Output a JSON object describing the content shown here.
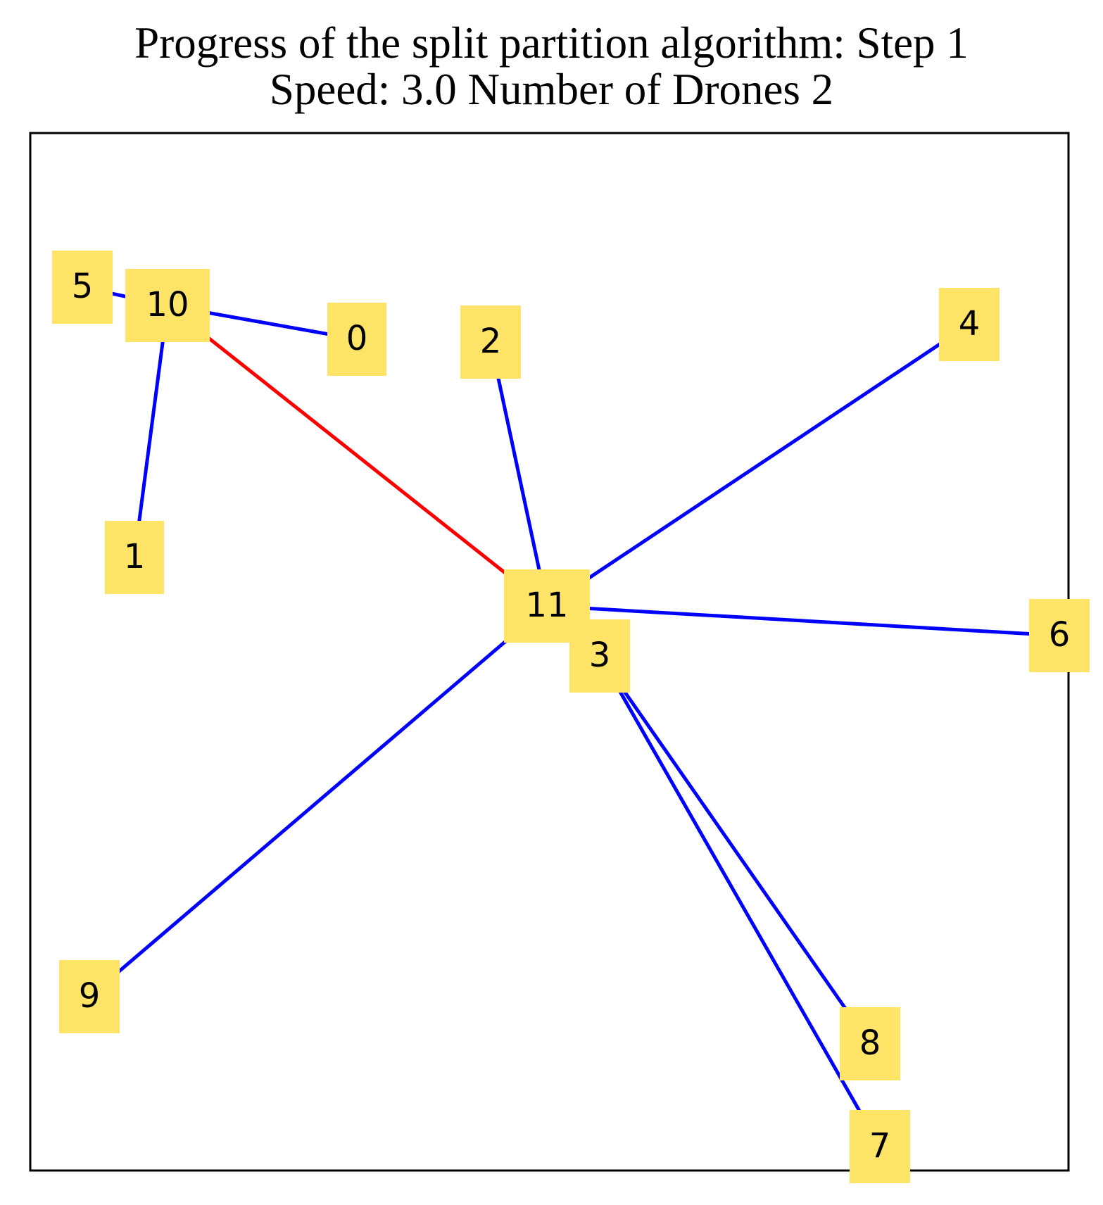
{
  "title": {
    "line1": "Progress of the split partition algorithm: Step 1",
    "line2": "Speed: 3.0 Number of Drones 2"
  },
  "colors": {
    "node_fill": "#fde466",
    "edge_primary": "#0000ff",
    "edge_highlight": "#ff0000",
    "frame": "#000000"
  },
  "nodes": [
    {
      "id": "0",
      "label": "0"
    },
    {
      "id": "1",
      "label": "1"
    },
    {
      "id": "2",
      "label": "2"
    },
    {
      "id": "3",
      "label": "3"
    },
    {
      "id": "4",
      "label": "4"
    },
    {
      "id": "5",
      "label": "5"
    },
    {
      "id": "6",
      "label": "6"
    },
    {
      "id": "7",
      "label": "7"
    },
    {
      "id": "8",
      "label": "8"
    },
    {
      "id": "9",
      "label": "9"
    },
    {
      "id": "10",
      "label": "10"
    },
    {
      "id": "11",
      "label": "11"
    }
  ],
  "edges": [
    {
      "from": "10",
      "to": "5",
      "color": "blue"
    },
    {
      "from": "10",
      "to": "0",
      "color": "blue"
    },
    {
      "from": "10",
      "to": "1",
      "color": "blue"
    },
    {
      "from": "10",
      "to": "11",
      "color": "red"
    },
    {
      "from": "11",
      "to": "2",
      "color": "blue"
    },
    {
      "from": "11",
      "to": "4",
      "color": "blue"
    },
    {
      "from": "11",
      "to": "6",
      "color": "blue"
    },
    {
      "from": "11",
      "to": "9",
      "color": "blue"
    },
    {
      "from": "11",
      "to": "3",
      "color": "blue"
    },
    {
      "from": "3",
      "to": "8",
      "color": "blue"
    },
    {
      "from": "3",
      "to": "7",
      "color": "blue"
    }
  ]
}
